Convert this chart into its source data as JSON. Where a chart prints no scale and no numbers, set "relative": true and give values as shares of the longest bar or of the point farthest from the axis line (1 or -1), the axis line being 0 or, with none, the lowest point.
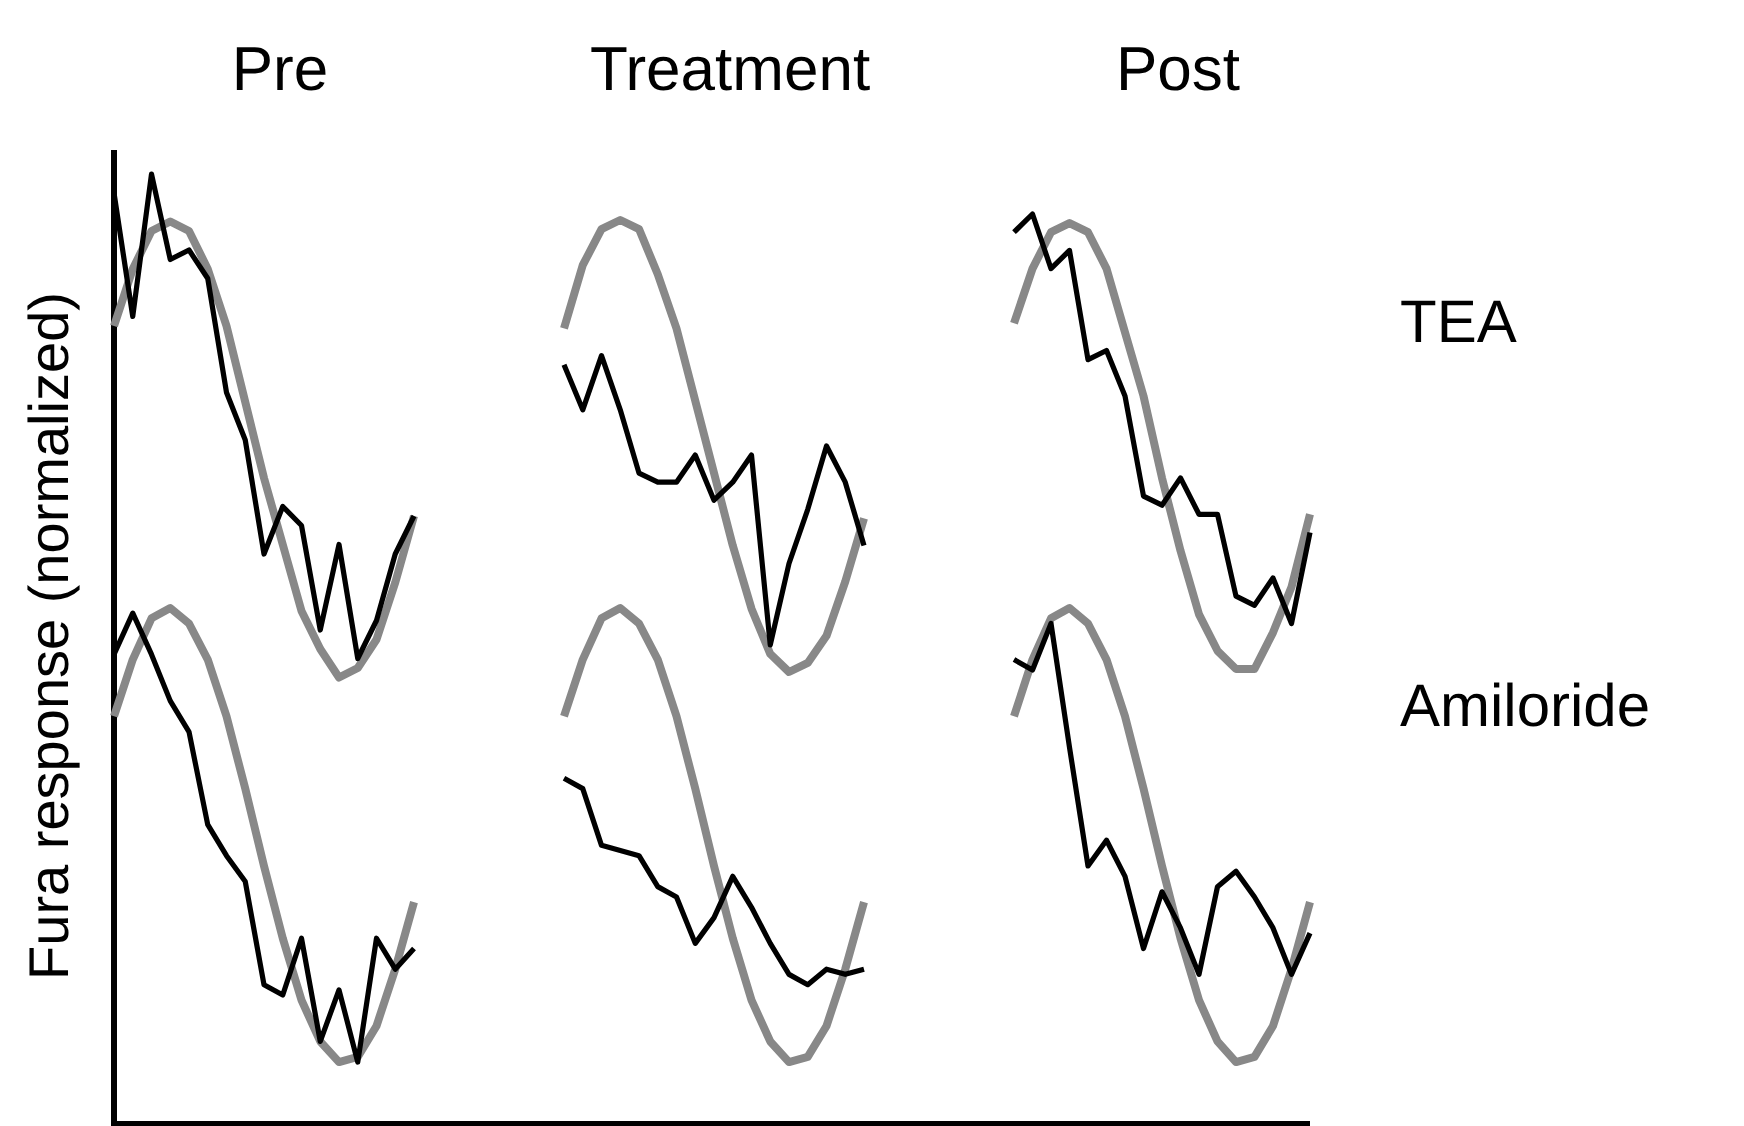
{
  "chart_data": [
    {
      "type": "line",
      "title": "Pre",
      "ylabel": "Fura response (normalized)",
      "relative": true,
      "categories": [
        null,
        null,
        null,
        null,
        null,
        null,
        null,
        null,
        null,
        null,
        null,
        null,
        null,
        null,
        null,
        null,
        null
      ],
      "series": [
        {
          "color": "#888888",
          "values": [
            0.84,
            0.9,
            0.94,
            0.95,
            0.94,
            0.9,
            0.84,
            0.76,
            0.68,
            0.61,
            0.54,
            0.5,
            0.47,
            0.48,
            0.51,
            0.57,
            0.64
          ]
        },
        {
          "color": "#000000",
          "values": [
            0.98,
            0.85,
            1,
            0.91,
            0.92,
            0.89,
            0.77,
            0.72,
            0.6,
            0.65,
            0.63,
            0.52,
            0.61,
            0.49,
            0.53,
            0.6,
            0.64
          ]
        }
      ]
    },
    {
      "type": "line",
      "title": "Treatment",
      "relative": true,
      "categories": [
        null,
        null,
        null,
        null,
        null,
        null,
        null,
        null,
        null,
        null,
        null,
        null,
        null,
        null,
        null,
        null,
        null
      ],
      "series": [
        {
          "color": "#888888",
          "values": [
            0.88,
            0.95,
            0.99,
            1,
            0.99,
            0.94,
            0.88,
            0.8,
            0.72,
            0.64,
            0.57,
            0.52,
            0.5,
            0.51,
            0.54,
            0.6,
            0.67
          ]
        },
        {
          "color": "#000000",
          "values": [
            0.84,
            0.79,
            0.85,
            0.79,
            0.72,
            0.71,
            0.71,
            0.74,
            0.69,
            0.71,
            0.74,
            0.53,
            0.62,
            0.68,
            0.75,
            0.71,
            0.64
          ]
        }
      ]
    },
    {
      "type": "line",
      "title": "Post",
      "annotations": [
        "TEA"
      ],
      "relative": true,
      "categories": [
        null,
        null,
        null,
        null,
        null,
        null,
        null,
        null,
        null,
        null,
        null,
        null,
        null,
        null,
        null,
        null,
        null
      ],
      "series": [
        {
          "color": "#888888",
          "values": [
            0.88,
            0.94,
            0.98,
            0.99,
            0.98,
            0.94,
            0.87,
            0.8,
            0.71,
            0.63,
            0.56,
            0.52,
            0.5,
            0.5,
            0.54,
            0.59,
            0.67
          ]
        },
        {
          "color": "#000000",
          "values": [
            0.98,
            1,
            0.94,
            0.96,
            0.84,
            0.85,
            0.8,
            0.69,
            0.68,
            0.71,
            0.67,
            0.67,
            0.58,
            0.57,
            0.6,
            0.55,
            0.65
          ]
        }
      ]
    },
    {
      "type": "line",
      "relative": true,
      "categories": [
        null,
        null,
        null,
        null,
        null,
        null,
        null,
        null,
        null,
        null,
        null,
        null,
        null,
        null,
        null,
        null,
        null
      ],
      "series": [
        {
          "color": "#888888",
          "values": [
            0.79,
            0.9,
            0.98,
            1,
            0.97,
            0.9,
            0.79,
            0.65,
            0.5,
            0.36,
            0.24,
            0.16,
            0.12,
            0.13,
            0.19,
            0.3,
            0.43
          ]
        },
        {
          "color": "#000000",
          "values": [
            0.91,
            0.99,
            0.91,
            0.82,
            0.76,
            0.58,
            0.52,
            0.47,
            0.27,
            0.25,
            0.36,
            0.16,
            0.26,
            0.12,
            0.36,
            0.3,
            0.34
          ]
        }
      ]
    },
    {
      "type": "line",
      "relative": true,
      "categories": [
        null,
        null,
        null,
        null,
        null,
        null,
        null,
        null,
        null,
        null,
        null,
        null,
        null,
        null,
        null,
        null,
        null
      ],
      "series": [
        {
          "color": "#888888",
          "values": [
            0.79,
            0.9,
            0.98,
            1,
            0.97,
            0.9,
            0.79,
            0.65,
            0.5,
            0.36,
            0.24,
            0.16,
            0.12,
            0.13,
            0.19,
            0.3,
            0.43
          ]
        },
        {
          "color": "#000000",
          "values": [
            0.67,
            0.65,
            0.54,
            0.53,
            0.52,
            0.46,
            0.44,
            0.35,
            0.4,
            0.48,
            0.42,
            0.35,
            0.29,
            0.27,
            0.3,
            0.29,
            0.3
          ]
        }
      ]
    },
    {
      "type": "line",
      "annotations": [
        "Amiloride"
      ],
      "relative": true,
      "categories": [
        null,
        null,
        null,
        null,
        null,
        null,
        null,
        null,
        null,
        null,
        null,
        null,
        null,
        null,
        null,
        null,
        null
      ],
      "series": [
        {
          "color": "#888888",
          "values": [
            0.79,
            0.9,
            0.98,
            1,
            0.97,
            0.9,
            0.79,
            0.65,
            0.5,
            0.36,
            0.24,
            0.16,
            0.12,
            0.13,
            0.19,
            0.3,
            0.43
          ]
        },
        {
          "color": "#000000",
          "values": [
            0.9,
            0.88,
            0.97,
            0.73,
            0.5,
            0.55,
            0.48,
            0.34,
            0.45,
            0.38,
            0.29,
            0.46,
            0.49,
            0.44,
            0.38,
            0.29,
            0.37
          ]
        }
      ]
    }
  ]
}
